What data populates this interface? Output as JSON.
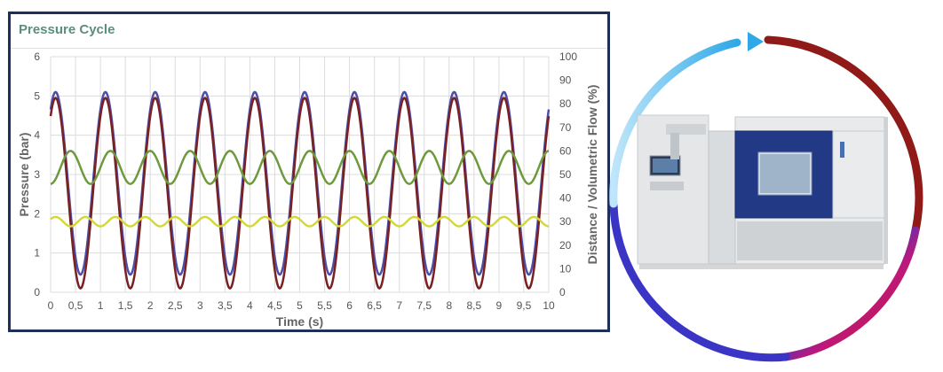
{
  "chart_data": {
    "type": "line",
    "title": "Pressure Cycle",
    "xlabel": "Time (s)",
    "ylabel": "Pressure (bar)",
    "y2label": "Distance / Volumetric Flow (%)",
    "xlim": [
      0,
      10
    ],
    "ylim": [
      0,
      6
    ],
    "y2lim": [
      0,
      100
    ],
    "x_ticks": [
      "0",
      "0,5",
      "1",
      "1,5",
      "2",
      "2,5",
      "3",
      "3,5",
      "4",
      "4,5",
      "5",
      "5,5",
      "6",
      "6,5",
      "7",
      "7,5",
      "8",
      "8,5",
      "9",
      "9,5",
      "10"
    ],
    "y_ticks": [
      "0",
      "1",
      "2",
      "3",
      "4",
      "5",
      "6"
    ],
    "y2_ticks": [
      "0",
      "10",
      "20",
      "30",
      "40",
      "50",
      "60",
      "70",
      "80",
      "90",
      "100"
    ],
    "grid": true,
    "legend": "none",
    "series": [
      {
        "axis": "y",
        "period_s": 1.0,
        "peak_time_s": 0.1,
        "min": 0.45,
        "max": 5.1,
        "color": "#4b4fa8"
      },
      {
        "axis": "y",
        "period_s": 1.0,
        "peak_time_s": 0.1,
        "min": 0.1,
        "max": 4.95,
        "color": "#7a1f22"
      },
      {
        "axis": "y2",
        "period_s": 0.8,
        "peak_time_s": 0.4,
        "min": 46,
        "max": 60,
        "color": "#6d9a3c"
      },
      {
        "axis": "y2",
        "period_s": 0.6,
        "peak_time_s": 0.1,
        "min": 28,
        "max": 32,
        "color": "#d4d83a"
      }
    ]
  },
  "colors": {
    "panel_border": "#1f2f5c",
    "title": "#5a8f7b",
    "grid": "#dcdcdc"
  },
  "illustration": {
    "subject": "environmental-test-chamber-machine",
    "ring_gradient": [
      "#2ea8e6",
      "#2a3dc9",
      "#c0177a",
      "#b31d1d",
      "#7d1412"
    ]
  }
}
